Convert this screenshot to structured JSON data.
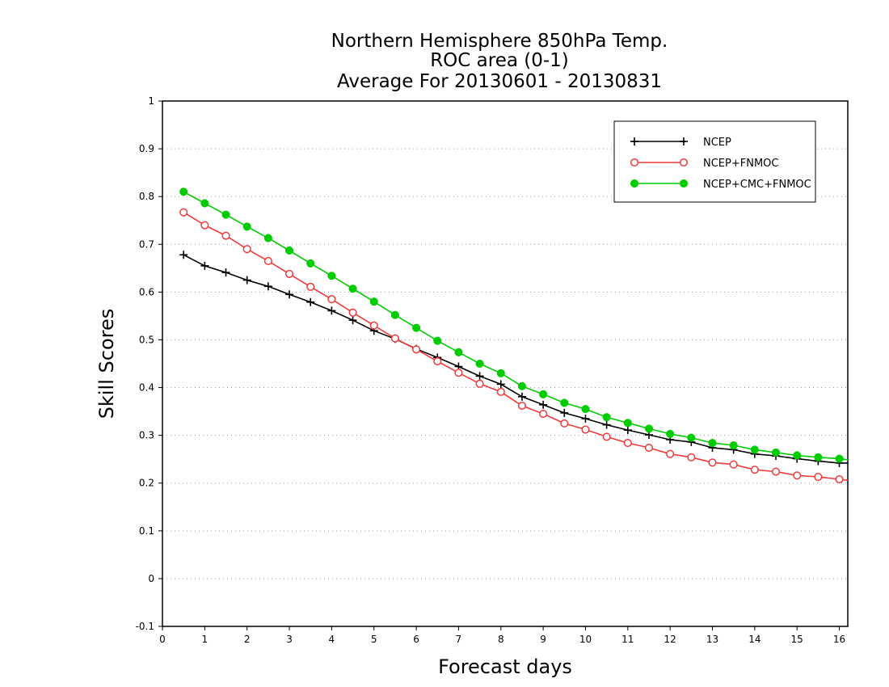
{
  "chart_data": {
    "type": "line",
    "title": [
      "Northern Hemisphere 850hPa Temp.",
      "ROC area (0-1)",
      "Average For 20130601 - 20130831"
    ],
    "xlabel": "Forecast days",
    "ylabel": "Skill Scores",
    "xlim": [
      0,
      16.2
    ],
    "ylim": [
      -0.1,
      1
    ],
    "xticks": [
      0,
      1,
      2,
      3,
      4,
      5,
      6,
      7,
      8,
      9,
      10,
      11,
      12,
      13,
      14,
      15,
      16
    ],
    "xtick_labels": [
      "0",
      "1",
      "2",
      "3",
      "4",
      "5",
      "6",
      "7",
      "8",
      "9",
      "10",
      "11",
      "12",
      "13",
      "14",
      "15",
      "16"
    ],
    "yticks": [
      -0.1,
      0,
      0.1,
      0.2,
      0.3,
      0.4,
      0.5,
      0.6,
      0.7,
      0.8,
      0.9,
      1
    ],
    "ytick_labels": [
      "-0.1",
      "0",
      "0.1",
      "0.2",
      "0.3",
      "0.4",
      "0.5",
      "0.6",
      "0.7",
      "0.8",
      "0.9",
      "1"
    ],
    "grid": "horizontal dotted",
    "legend_position": "top-right",
    "x": [
      0.5,
      1,
      1.5,
      2,
      2.5,
      3,
      3.5,
      4,
      4.5,
      5,
      5.5,
      6,
      6.5,
      7,
      7.5,
      8,
      8.5,
      9,
      9.5,
      10,
      10.5,
      11,
      11.5,
      12,
      12.5,
      13,
      13.5,
      14,
      14.5,
      15,
      15.5,
      16,
      16.2
    ],
    "series": [
      {
        "name": "NCEP",
        "color": "#000000",
        "marker": "plus",
        "values": [
          0.678,
          0.655,
          0.641,
          0.625,
          0.612,
          0.595,
          0.579,
          0.561,
          0.541,
          0.519,
          0.502,
          0.481,
          0.463,
          0.444,
          0.424,
          0.407,
          0.381,
          0.364,
          0.347,
          0.335,
          0.322,
          0.311,
          0.301,
          0.291,
          0.286,
          0.274,
          0.27,
          0.261,
          0.257,
          0.251,
          0.246,
          0.242,
          0.242
        ]
      },
      {
        "name": "NCEP+FNMOC",
        "color": "#ee3b3b",
        "marker": "open-circle",
        "values": [
          0.767,
          0.74,
          0.718,
          0.69,
          0.665,
          0.638,
          0.611,
          0.585,
          0.557,
          0.53,
          0.503,
          0.48,
          0.455,
          0.431,
          0.408,
          0.391,
          0.362,
          0.345,
          0.325,
          0.312,
          0.297,
          0.284,
          0.274,
          0.261,
          0.254,
          0.243,
          0.239,
          0.228,
          0.224,
          0.216,
          0.213,
          0.208,
          0.206
        ]
      },
      {
        "name": "NCEP+CMC+FNMOC",
        "color": "#00cc00",
        "marker": "filled-circle",
        "values": [
          0.81,
          0.786,
          0.762,
          0.737,
          0.713,
          0.687,
          0.66,
          0.634,
          0.607,
          0.58,
          0.552,
          0.525,
          0.498,
          0.474,
          0.45,
          0.43,
          0.403,
          0.386,
          0.368,
          0.355,
          0.338,
          0.326,
          0.314,
          0.303,
          0.295,
          0.284,
          0.279,
          0.27,
          0.264,
          0.258,
          0.254,
          0.251,
          0.249
        ]
      }
    ]
  }
}
